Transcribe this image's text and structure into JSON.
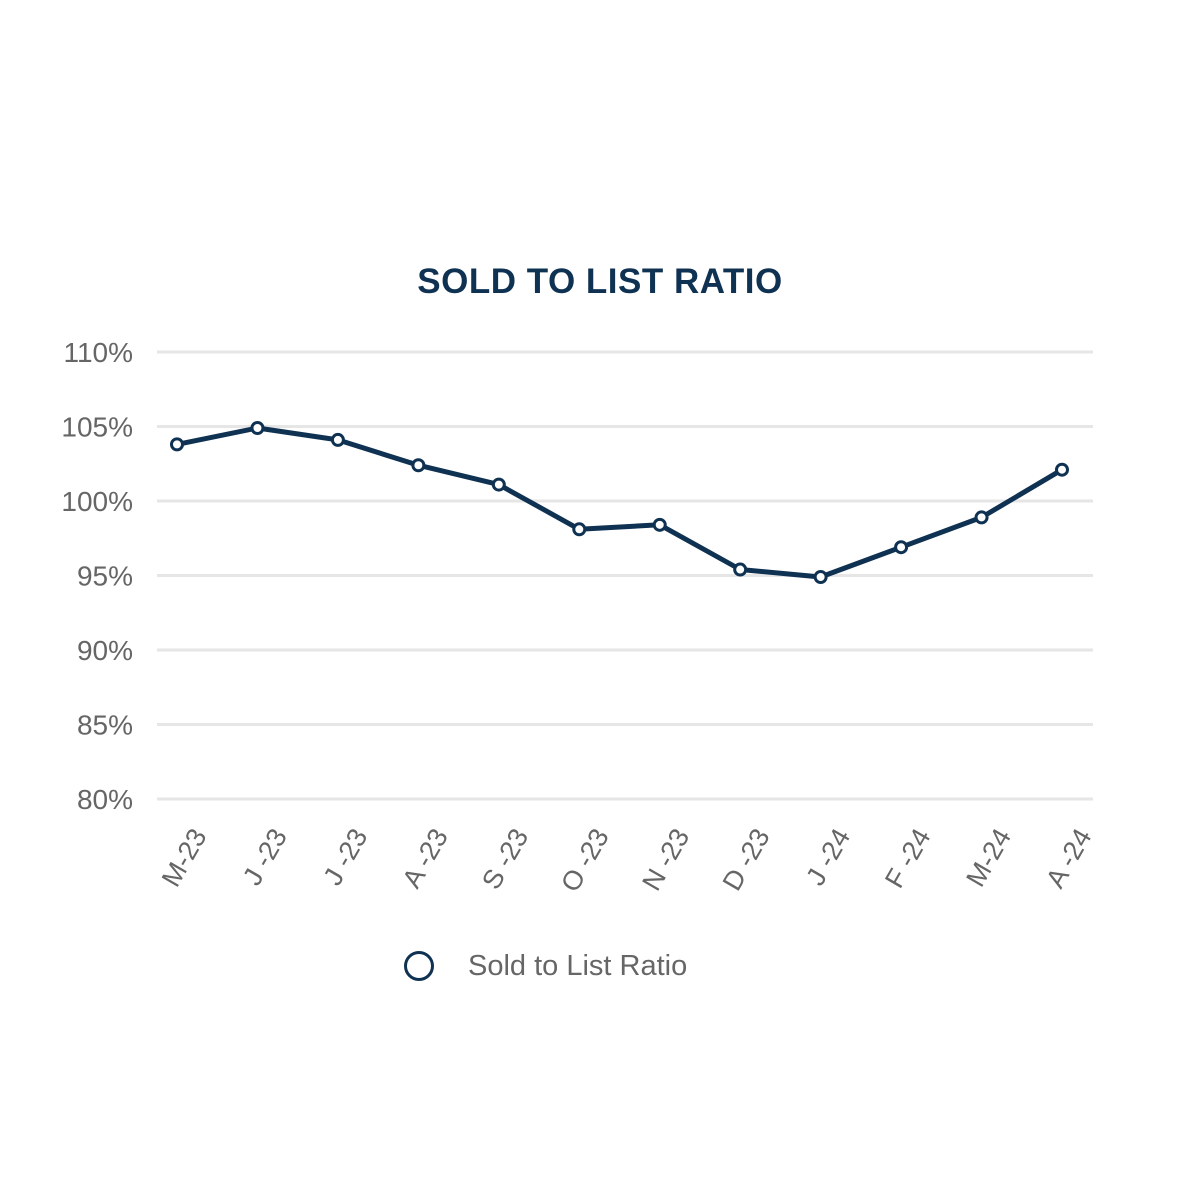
{
  "chart_data": {
    "type": "line",
    "title": "SOLD TO LIST RATIO",
    "categories": [
      "M-23",
      "J -23",
      "J -23",
      "A -23",
      "S -23",
      "O -23",
      "N -23",
      "D -23",
      "J -24",
      "F -24",
      "M-24",
      "A -24"
    ],
    "series": [
      {
        "name": "Sold to List Ratio",
        "values": [
          103.8,
          104.9,
          104.1,
          102.4,
          101.1,
          98.1,
          98.4,
          95.4,
          94.9,
          96.9,
          98.9,
          102.1
        ]
      }
    ],
    "y_ticks": [
      "110%",
      "105%",
      "100%",
      "95%",
      "90%",
      "85%",
      "80%"
    ],
    "ylim": [
      80,
      110
    ],
    "xlabel": "",
    "ylabel": "",
    "grid": true,
    "legend_position": "bottom",
    "colors": {
      "line": "#0f3253",
      "marker_fill": "#ffffff",
      "grid": "#e6e6e6",
      "tick_text": "#666666",
      "title": "#0f3253"
    }
  }
}
